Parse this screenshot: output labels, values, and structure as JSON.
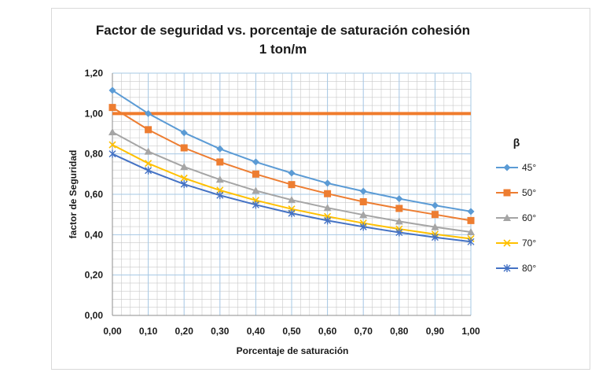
{
  "chart_data": {
    "type": "line",
    "title": "Factor de seguridad vs. porcentaje de saturación cohesión",
    "subtitle": "1 ton/m",
    "xlabel": "Porcentaje de saturación",
    "ylabel": "factor de Seguridad",
    "xlim": [
      0,
      1
    ],
    "ylim": [
      0,
      1.2
    ],
    "x": [
      0,
      0.1,
      0.2,
      0.3,
      0.4,
      0.5,
      0.6,
      0.7,
      0.8,
      0.9,
      1.0
    ],
    "x_tick_labels": [
      "0,00",
      "0,10",
      "0,20",
      "0,30",
      "0,40",
      "0,50",
      "0,60",
      "0,70",
      "0,80",
      "0,90",
      "1,00"
    ],
    "y_tick_labels": [
      "0,00",
      "0,20",
      "0,40",
      "0,60",
      "0,80",
      "1,00",
      "1,20"
    ],
    "y_ticks": [
      0,
      0.2,
      0.4,
      0.6,
      0.8,
      1.0,
      1.2
    ],
    "grid": true,
    "legend_title": "β",
    "legend_position": "right",
    "reference_line": {
      "y": 1.0,
      "x_range": [
        0,
        1.0
      ],
      "color": "#f07b2c"
    },
    "series": [
      {
        "name": "45°",
        "color": "#5b9bd5",
        "marker": "diamond",
        "values": [
          1.115,
          1.0,
          0.905,
          0.825,
          0.76,
          0.705,
          0.655,
          0.615,
          0.578,
          0.545,
          0.515
        ]
      },
      {
        "name": "50°",
        "color": "#ed7d31",
        "marker": "square",
        "values": [
          1.03,
          0.92,
          0.83,
          0.76,
          0.7,
          0.648,
          0.603,
          0.563,
          0.53,
          0.5,
          0.47
        ]
      },
      {
        "name": "60°",
        "color": "#a5a5a5",
        "marker": "triangle",
        "values": [
          0.908,
          0.812,
          0.736,
          0.673,
          0.618,
          0.572,
          0.533,
          0.498,
          0.466,
          0.438,
          0.413
        ]
      },
      {
        "name": "70°",
        "color": "#ffc000",
        "marker": "x",
        "values": [
          0.845,
          0.753,
          0.68,
          0.62,
          0.57,
          0.527,
          0.49,
          0.457,
          0.428,
          0.402,
          0.38
        ]
      },
      {
        "name": "80°",
        "color": "#4472c4",
        "marker": "star",
        "values": [
          0.8,
          0.718,
          0.65,
          0.595,
          0.548,
          0.506,
          0.47,
          0.439,
          0.411,
          0.387,
          0.365
        ]
      }
    ]
  }
}
